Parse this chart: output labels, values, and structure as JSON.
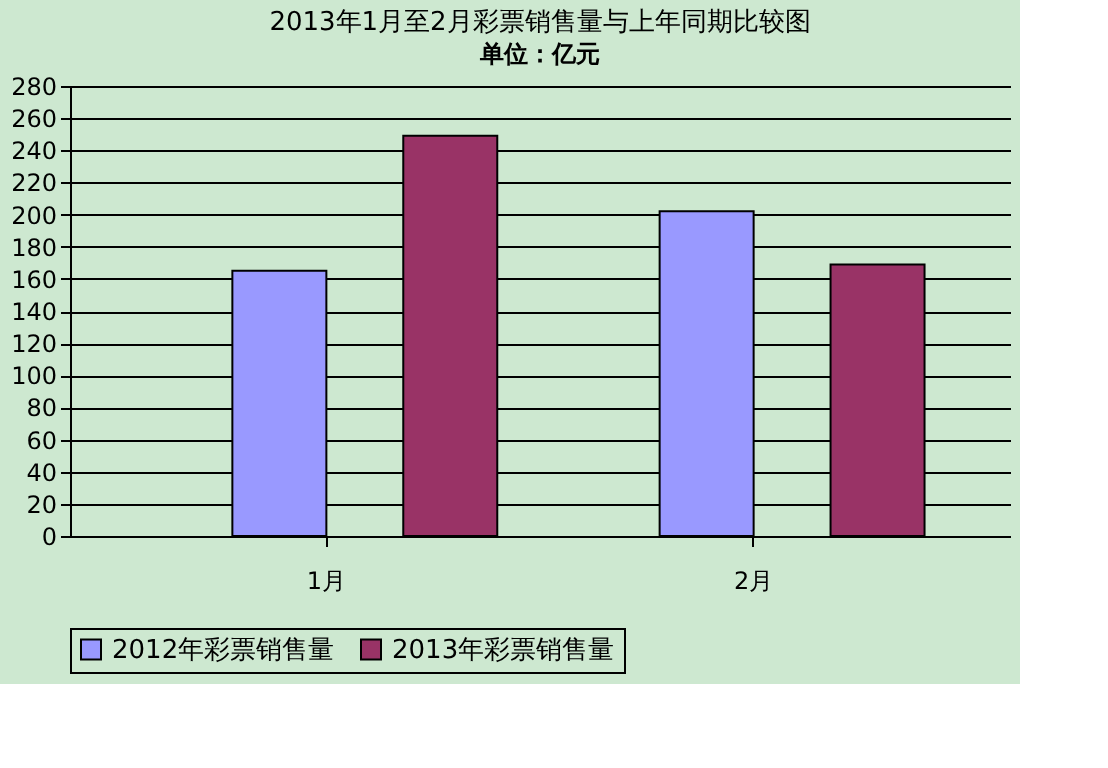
{
  "chart_data": {
    "type": "bar",
    "title": "2013年1月至2月彩票销售量与上年同期比较图",
    "annotations": [
      "单位：亿元"
    ],
    "categories": [
      "1月",
      "2月"
    ],
    "series": [
      {
        "name": "2012年彩票销售量",
        "color": "#9999ff",
        "values": [
          165,
          202
        ]
      },
      {
        "name": "2013年彩票销售量",
        "color": "#993366",
        "values": [
          249,
          169
        ]
      }
    ],
    "ylim": [
      0,
      280
    ],
    "yticks": [
      0,
      20,
      40,
      60,
      80,
      100,
      120,
      140,
      160,
      180,
      200,
      220,
      240,
      260,
      280
    ],
    "grid": "y",
    "legend": "bottom"
  }
}
